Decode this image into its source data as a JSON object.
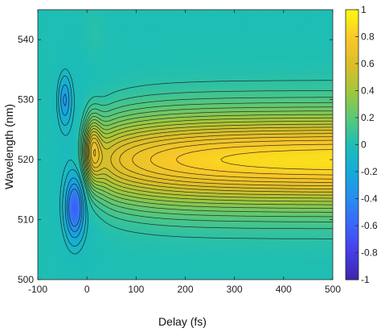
{
  "chart_data": {
    "type": "heatmap",
    "title": "",
    "xlabel": "Delay (fs)",
    "ylabel": "Wavelength (nm)",
    "xlim": [
      -100,
      500
    ],
    "ylim": [
      500,
      545
    ],
    "x_ticks": [
      -100,
      0,
      100,
      200,
      300,
      400,
      500
    ],
    "y_ticks": [
      500,
      510,
      520,
      530,
      540
    ],
    "x_tick_labels": [
      "-100",
      "0",
      "100",
      "200",
      "300",
      "400",
      "500"
    ],
    "y_tick_labels": [
      "500",
      "510",
      "520",
      "530",
      "540"
    ],
    "colorbar": {
      "range": [
        -1,
        1
      ],
      "ticks": [
        -1,
        -0.8,
        -0.6,
        -0.4,
        -0.2,
        0,
        0.2,
        0.4,
        0.6,
        0.8,
        1
      ],
      "tick_labels": [
        "-1",
        "-0.8",
        "-0.6",
        "-0.4",
        "-0.2",
        "0",
        "0.2",
        "0.4",
        "0.6",
        "0.8",
        "1"
      ],
      "colormap": "parula"
    },
    "contours": true,
    "contour_levels": [
      0.05,
      0.1,
      0.15,
      0.2,
      0.25,
      0.3,
      0.35,
      0.4,
      0.45,
      0.5,
      0.55,
      0.6,
      0.65,
      0.7,
      0.75,
      0.8,
      0.85,
      0.9,
      -0.05,
      -0.1,
      -0.2,
      -0.3,
      -0.4
    ],
    "features": [
      {
        "kind": "peak",
        "center_wavelength_nm": 520,
        "amplitude": 0.9,
        "onset_delay_fs": -10,
        "note": "positive band, max near 450 fs"
      },
      {
        "kind": "early-peak",
        "delay_fs": 10,
        "wavelength_nm": 522,
        "amplitude": 0.42
      },
      {
        "kind": "dip",
        "delay_fs": -25,
        "wavelength_nm": 512,
        "amplitude": -0.6
      },
      {
        "kind": "dip",
        "delay_fs": -45,
        "wavelength_nm": 530,
        "amplitude": -0.3
      }
    ]
  }
}
